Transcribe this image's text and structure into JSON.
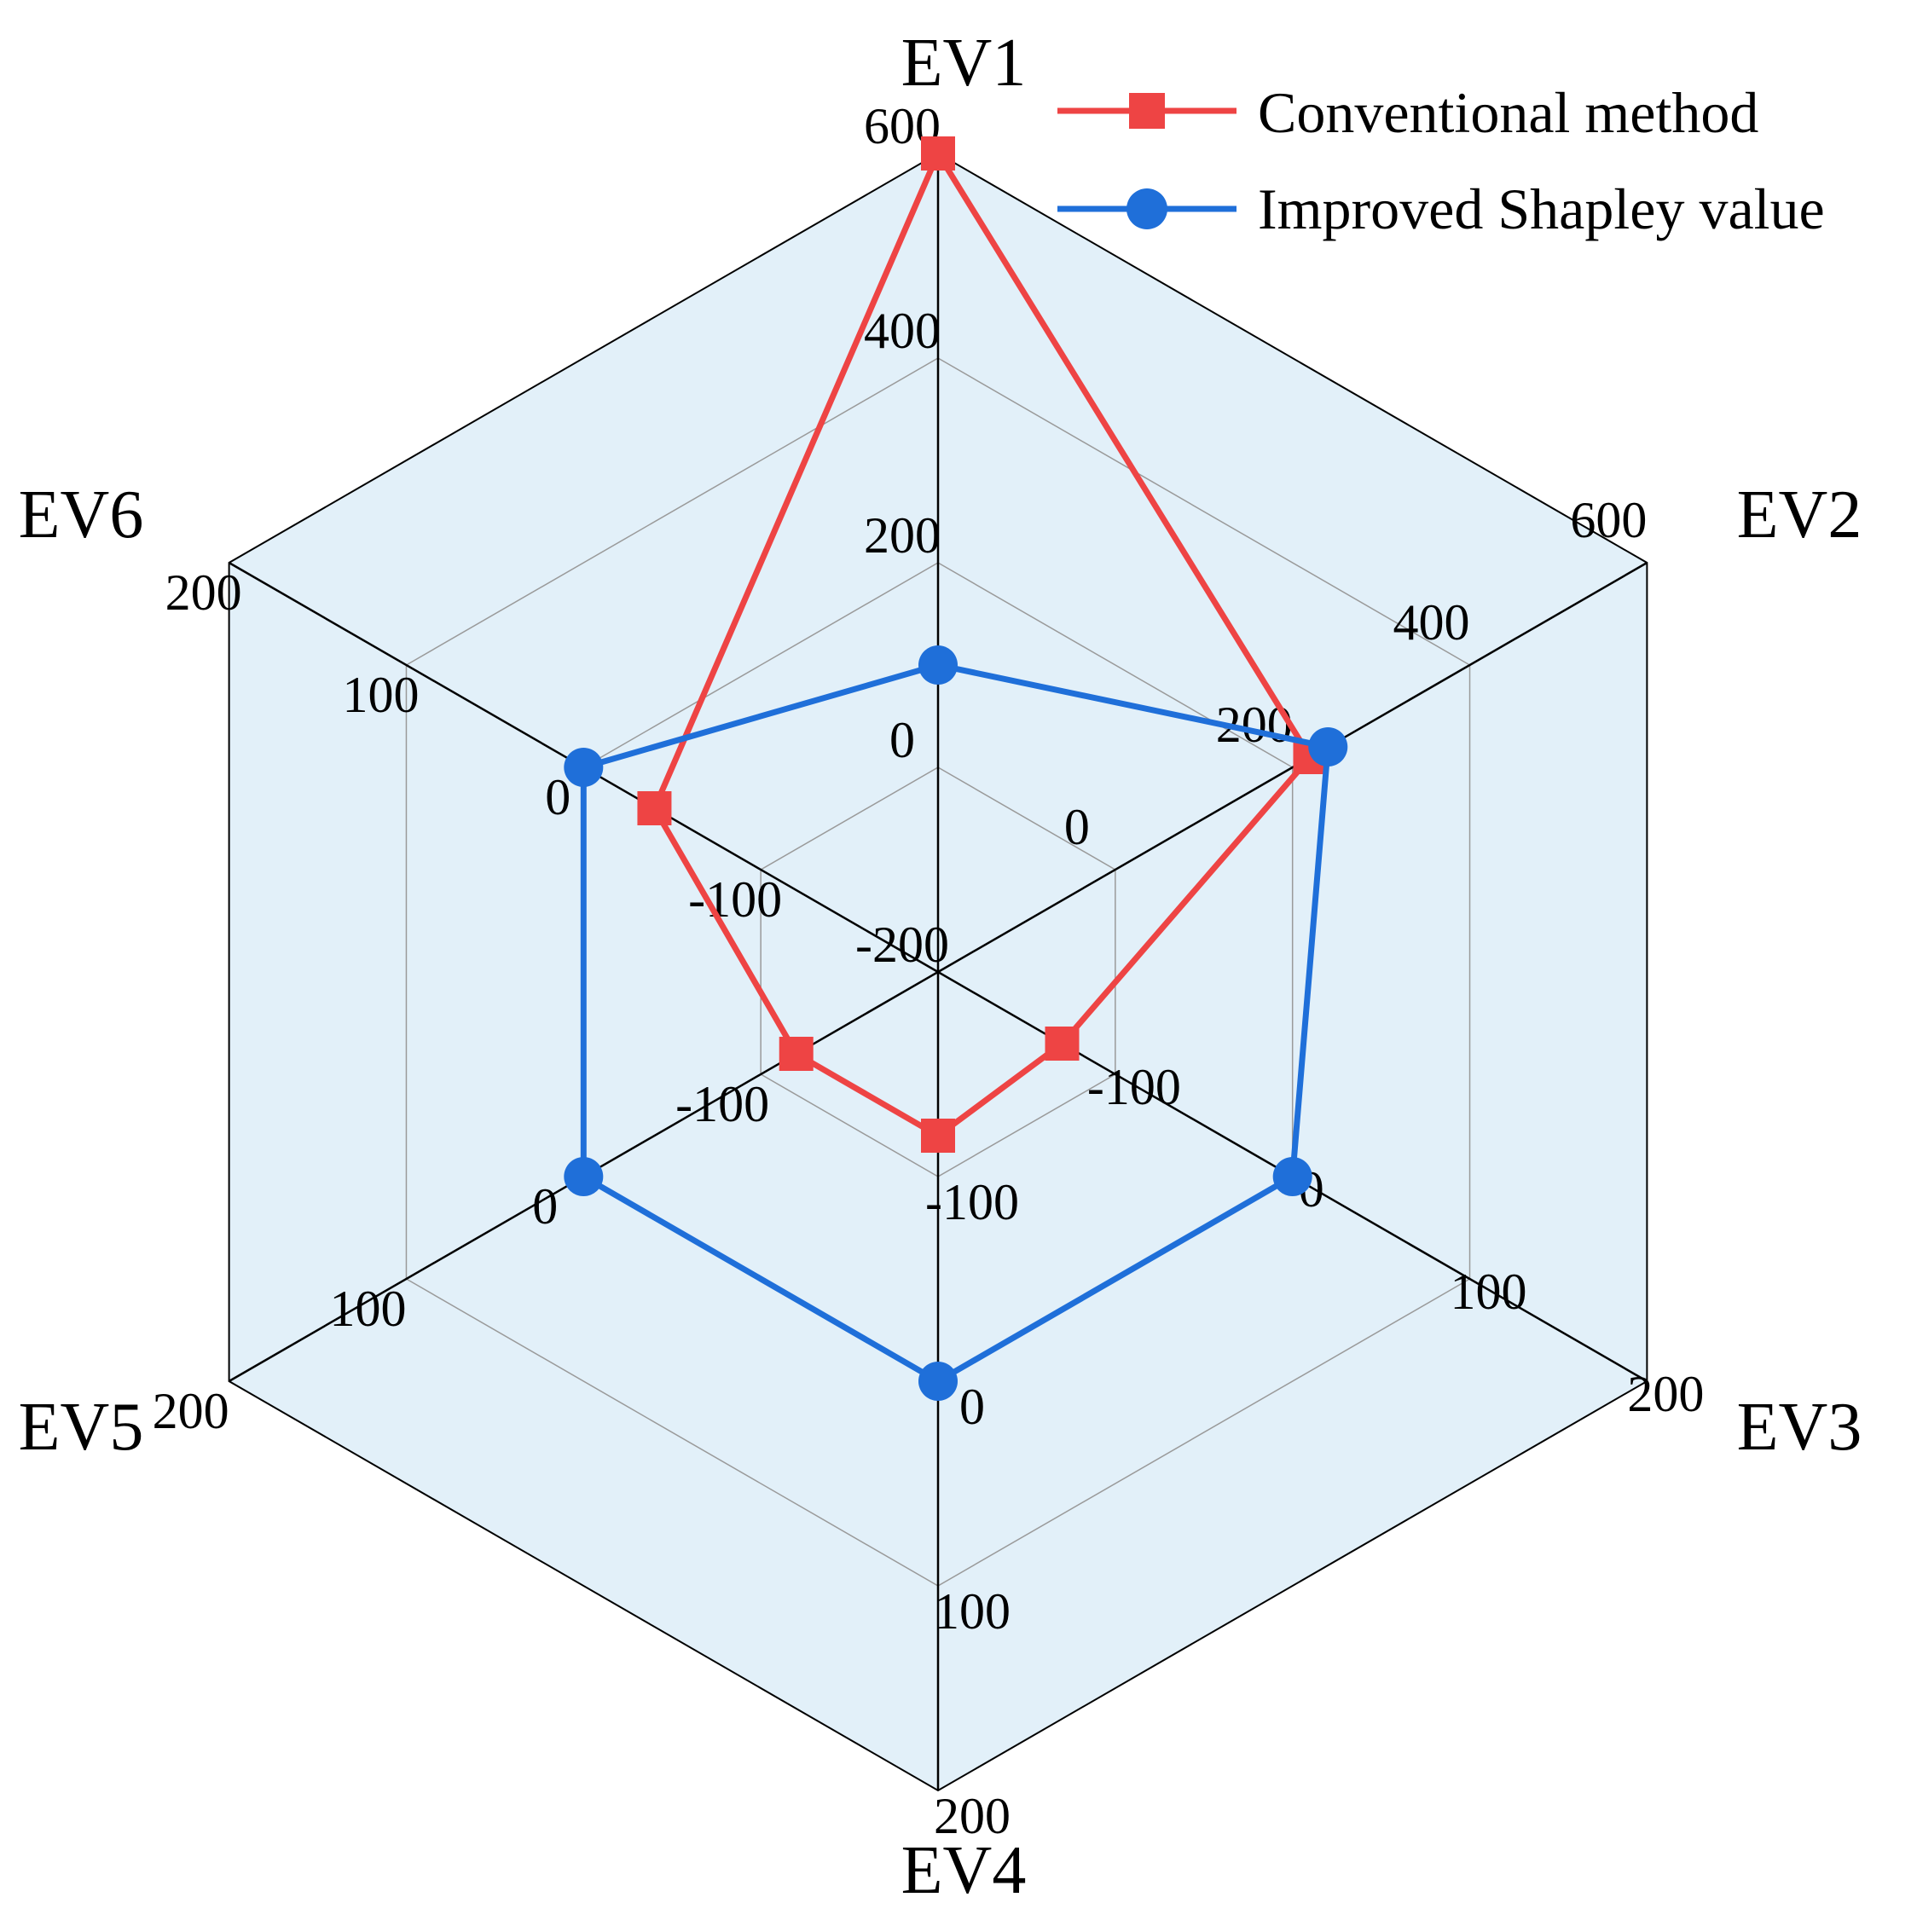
{
  "chart_data": {
    "type": "radar",
    "title": "",
    "axes": [
      {
        "name": "EV1",
        "ticks": [
          -200,
          0,
          200,
          400,
          600
        ],
        "range": [
          -200,
          600
        ]
      },
      {
        "name": "EV2",
        "ticks": [
          0,
          200,
          400,
          600
        ],
        "range": [
          -200,
          600
        ]
      },
      {
        "name": "EV3",
        "ticks": [
          -100,
          0,
          100,
          200
        ],
        "range": [
          -200,
          200
        ]
      },
      {
        "name": "EV4",
        "ticks": [
          -100,
          0,
          100,
          200
        ],
        "range": [
          -200,
          200
        ]
      },
      {
        "name": "EV5",
        "ticks": [
          -100,
          0,
          100,
          200
        ],
        "range": [
          -200,
          200
        ]
      },
      {
        "name": "EV6",
        "ticks": [
          -100,
          0,
          100,
          200
        ],
        "range": [
          -200,
          200
        ]
      }
    ],
    "tick_labels": [
      "-200",
      "0",
      "200",
      "400",
      "600"
    ],
    "series": [
      {
        "name": "Conventional method",
        "color": "#EE4444",
        "marker": "square",
        "values": [
          600,
          220,
          -130,
          -120,
          -120,
          -40
        ]
      },
      {
        "name": "Improved Shapley value",
        "color": "#1F6FD9",
        "marker": "circle",
        "values": [
          100,
          240,
          0,
          0,
          0,
          0
        ]
      }
    ],
    "legend": {
      "position": "top-right",
      "entries": [
        "Conventional method",
        "Improved Shapley value"
      ]
    },
    "grid": true,
    "background_color": "#E2F0F9"
  }
}
